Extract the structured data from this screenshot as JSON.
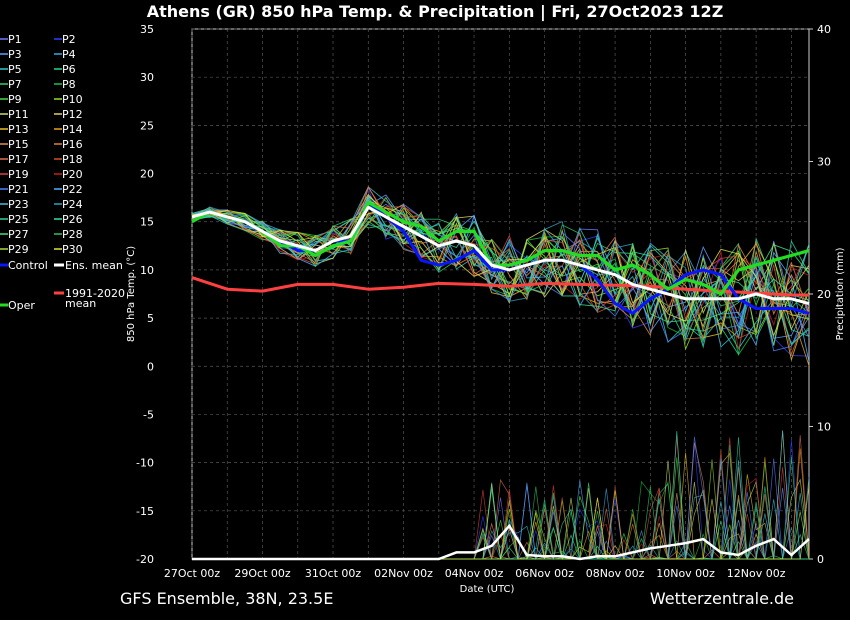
{
  "chart_data": {
    "type": "line",
    "title": "Athens  (GR)  850 hPa Temp. & Precipitation | Fri, 27Oct2023 12Z",
    "xlabel": "Date (UTC)",
    "ylabel": "850 hPa Temp. (°C)",
    "ylabel2": "Precipitation (mm)",
    "x_ticks": [
      "27Oct 00z",
      "29Oct 00z",
      "31Oct 00z",
      "02Nov 00z",
      "04Nov 00z",
      "06Nov 00z",
      "08Nov 00z",
      "10Nov 00z",
      "12Nov 00z"
    ],
    "y_ticks": [
      "35",
      "30",
      "25",
      "20",
      "15",
      "10",
      "5",
      "0",
      "-5",
      "-10",
      "-15",
      "-20"
    ],
    "y2_ticks": [
      "40",
      "30",
      "20",
      "10",
      "0"
    ],
    "ylim": [
      -20,
      35
    ],
    "y2lim": [
      0,
      40
    ],
    "xlim_days": [
      0,
      17.5
    ],
    "grid": true,
    "legend_position": "left",
    "legend": [
      [
        "P1",
        "#6a7bff"
      ],
      [
        "P2",
        "#3040ff"
      ],
      [
        "P3",
        "#5aa0ff"
      ],
      [
        "P4",
        "#3aa8e0"
      ],
      [
        "P5",
        "#30c8c8"
      ],
      [
        "P6",
        "#20d890"
      ],
      [
        "P7",
        "#30d070"
      ],
      [
        "P8",
        "#20c040"
      ],
      [
        "P9",
        "#40e040"
      ],
      [
        "P10",
        "#90e020"
      ],
      [
        "P11",
        "#c8e060"
      ],
      [
        "P12",
        "#e0d060"
      ],
      [
        "P13",
        "#e8c020"
      ],
      [
        "P14",
        "#e8a020"
      ],
      [
        "P15",
        "#e09050"
      ],
      [
        "P16",
        "#e08040"
      ],
      [
        "P17",
        "#e07050"
      ],
      [
        "P18",
        "#d05030"
      ],
      [
        "P19",
        "#e04040"
      ],
      [
        "P20",
        "#c02020"
      ],
      [
        "P21",
        "#5080ff"
      ],
      [
        "P22",
        "#50b0ff"
      ],
      [
        "P23",
        "#40c0e0"
      ],
      [
        "P24",
        "#30a0c0"
      ],
      [
        "P25",
        "#30d0a0"
      ],
      [
        "P26",
        "#30e0b0"
      ],
      [
        "P27",
        "#40e080"
      ],
      [
        "P28",
        "#30c060"
      ],
      [
        "P29",
        "#a0e040"
      ],
      [
        "P30",
        "#e0e040"
      ]
    ],
    "legend_special": {
      "control": {
        "label": "Control",
        "color": "#0a14ff"
      },
      "ens_mean": {
        "label": "Ens. mean",
        "color": "#ffffff"
      },
      "oper": {
        "label": "Oper",
        "color": "#22dd22"
      },
      "climate": {
        "label1": "1991-2020",
        "label2": "mean",
        "color": "#ff4040"
      }
    },
    "series_ens_mean": {
      "x": [
        0,
        0.5,
        1,
        1.5,
        2,
        2.5,
        3,
        3.5,
        4,
        4.5,
        5,
        5.5,
        6,
        6.5,
        7,
        7.5,
        8,
        8.5,
        9,
        9.5,
        10,
        10.5,
        11,
        11.5,
        12,
        12.5,
        13,
        13.5,
        14,
        14.5,
        15,
        15.5,
        16,
        16.5,
        17,
        17.5
      ],
      "y": [
        15.5,
        16,
        15.5,
        15,
        14,
        13,
        12.5,
        12,
        13,
        13.5,
        16.5,
        15.5,
        14.5,
        13.5,
        12.5,
        13,
        12.5,
        10.5,
        10,
        10.5,
        11,
        11,
        10.5,
        10,
        9.5,
        8.5,
        8,
        7.5,
        7,
        7,
        7,
        7,
        7.5,
        7,
        7,
        6.5
      ]
    },
    "series_oper": {
      "x": [
        0,
        0.5,
        1,
        1.5,
        2,
        2.5,
        3,
        3.5,
        4,
        4.5,
        5,
        5.5,
        6,
        6.5,
        7,
        7.5,
        8,
        8.5,
        9,
        9.5,
        10,
        10.5,
        11,
        11.5,
        12,
        12.5,
        13,
        13.5,
        14,
        14.5,
        15,
        15.5,
        16,
        16.5,
        17,
        17.5
      ],
      "y": [
        15,
        16,
        15.5,
        15,
        14,
        12.5,
        12.5,
        11.5,
        12.5,
        13,
        17,
        16,
        15,
        14.5,
        13,
        14,
        14,
        10.5,
        10.5,
        11,
        12,
        12,
        11.5,
        11.5,
        10,
        10.5,
        9.5,
        8,
        9,
        8.5,
        7.5,
        10,
        10.5,
        11,
        11.5,
        12
      ]
    },
    "series_control": {
      "x": [
        0,
        0.5,
        1,
        1.5,
        2,
        2.5,
        3,
        3.5,
        4,
        4.5,
        5,
        5.5,
        6,
        6.5,
        7,
        7.5,
        8,
        8.5,
        9,
        9.5,
        10,
        10.5,
        11,
        11.5,
        12,
        12.5,
        13,
        13.5,
        14,
        14.5,
        15,
        15.5,
        16,
        16.5,
        17,
        17.5
      ],
      "y": [
        15,
        16,
        15.5,
        15,
        14,
        13,
        12,
        12,
        13,
        13,
        17,
        15.5,
        14,
        11,
        10.5,
        11,
        12,
        10,
        10,
        10.5,
        11,
        11,
        10.5,
        9,
        6.5,
        5.5,
        7,
        8,
        9.5,
        10,
        9.5,
        7,
        6,
        6,
        6,
        5.5
      ]
    },
    "series_climate_mean": {
      "x": [
        0,
        1,
        2,
        3,
        4,
        5,
        6,
        7,
        8,
        9,
        10,
        11,
        12,
        13,
        14,
        15,
        16,
        17,
        17.5
      ],
      "y": [
        9.2,
        8,
        7.8,
        8.5,
        8.5,
        8,
        8.2,
        8.6,
        8.5,
        8.3,
        8.6,
        8.5,
        8.4,
        8.3,
        8,
        7.8,
        7.6,
        7.4,
        7.4
      ]
    },
    "precip_ens_mean_mm": {
      "x": [
        0,
        7,
        7.5,
        8,
        8.5,
        9,
        9.5,
        10,
        10.5,
        11,
        11.5,
        12,
        12.5,
        13,
        13.5,
        14,
        14.5,
        15,
        15.5,
        16,
        16.5,
        17,
        17.5
      ],
      "y": [
        0,
        0,
        0.5,
        0.5,
        1,
        2.5,
        0.3,
        0.2,
        0.2,
        0,
        0.2,
        0.2,
        0.5,
        0.8,
        1,
        1.2,
        1.5,
        0.5,
        0.3,
        1,
        1.5,
        0.3,
        1.5
      ]
    },
    "footer_left": "GFS Ensemble, 38N, 23.5E",
    "footer_right": "Wetterzentrale.de"
  }
}
